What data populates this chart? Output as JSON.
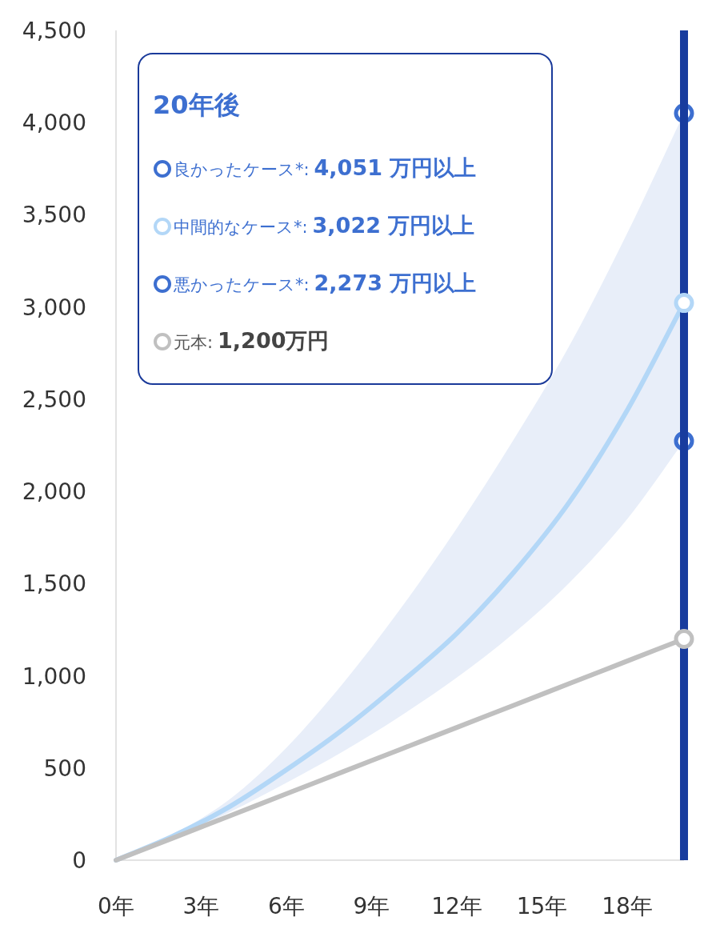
{
  "chart_data": {
    "type": "line",
    "legend_title": "20年後",
    "legend": "top left",
    "grid": false,
    "xlim": [
      0,
      20
    ],
    "xticks": [
      {
        "value": 0,
        "label": "0年"
      },
      {
        "value": 3,
        "label": "3年"
      },
      {
        "value": 6,
        "label": "6年"
      },
      {
        "value": 9,
        "label": "9年"
      },
      {
        "value": 12,
        "label": "12年"
      },
      {
        "value": 15,
        "label": "15年"
      },
      {
        "value": 18,
        "label": "18年"
      }
    ],
    "ylim": [
      0,
      4500
    ],
    "yticks": [
      {
        "value": 0,
        "label": "0"
      },
      {
        "value": 500,
        "label": "500"
      },
      {
        "value": 1000,
        "label": "1,000"
      },
      {
        "value": 1500,
        "label": "1,500"
      },
      {
        "value": 2000,
        "label": "2,000"
      },
      {
        "value": 2500,
        "label": "2,500"
      },
      {
        "value": 3000,
        "label": "3,000"
      },
      {
        "value": 3500,
        "label": "3,500"
      },
      {
        "value": 4000,
        "label": "4,000"
      },
      {
        "value": 4500,
        "label": "4,500"
      }
    ],
    "ref_lines": [
      {
        "axis": "x",
        "value": 20,
        "color": "#183c9e"
      }
    ],
    "series": [
      {
        "name": "良かったケース*:",
        "type": "scatter",
        "color": "#3d6fd0",
        "x": [
          20
        ],
        "values": [
          4051
        ]
      },
      {
        "name": "中間的なケース*:",
        "color": "#b3d7f7",
        "x": [
          0,
          2,
          4,
          6,
          8,
          10,
          12,
          14,
          16,
          18,
          20
        ],
        "values": [
          0,
          130,
          290,
          490,
          710,
          960,
          1230,
          1560,
          1950,
          2440,
          3022
        ],
        "lower": [
          0,
          120,
          260,
          420,
          590,
          780,
          990,
          1230,
          1510,
          1850,
          2273
        ],
        "upper": [
          0,
          140,
          330,
          610,
          960,
          1360,
          1800,
          2280,
          2800,
          3400,
          4051
        ]
      },
      {
        "name": "悪かったケース*:",
        "type": "scatter",
        "color": "#3d6fd0",
        "x": [
          20
        ],
        "values": [
          2273
        ]
      },
      {
        "name": "元本:",
        "color": "#c0c0c0",
        "x": [
          0,
          2,
          4,
          6,
          8,
          10,
          12,
          14,
          16,
          18,
          20
        ],
        "values": [
          0,
          120,
          240,
          360,
          480,
          600,
          720,
          840,
          960,
          1080,
          1200
        ]
      }
    ],
    "annotations": [
      "4,051 万円以上",
      "3,022 万円以上",
      "2,273 万円以上",
      "1,200万円"
    ]
  }
}
